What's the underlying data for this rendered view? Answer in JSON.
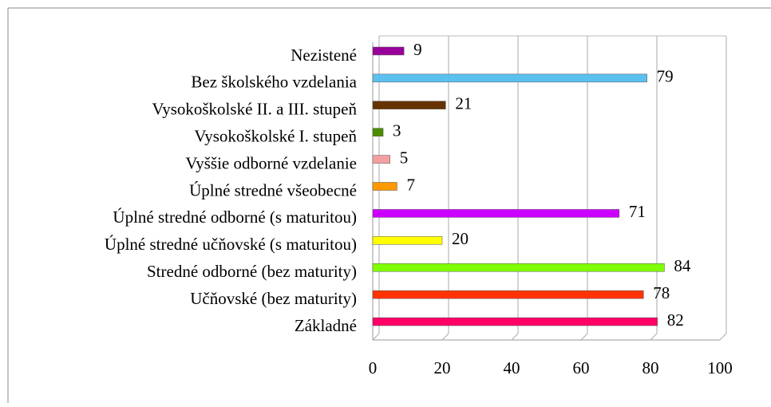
{
  "chart_data": {
    "type": "bar",
    "orientation": "horizontal",
    "categories": [
      "Nezistené",
      "Bez školského vzdelania",
      "Vysokoškolské II. a III. stupeň",
      "Vysokoškolské I. stupeň",
      "Vyššie odborné vzdelanie",
      "Úplné stredné všeobecné",
      "Úplné stredné odborné (s maturitou)",
      "Úplné stredné učňovské (s maturitou)",
      "Stredné odborné (bez maturity)",
      "Učňovské (bez maturity)",
      "Základné"
    ],
    "values": [
      9,
      79,
      21,
      3,
      5,
      7,
      71,
      20,
      84,
      78,
      82
    ],
    "colors": [
      "#990099",
      "#5bc0f0",
      "#663300",
      "#4d8c00",
      "#f4a0a0",
      "#ff9900",
      "#cc00ff",
      "#ffff00",
      "#80ff00",
      "#ff3300",
      "#ff0066"
    ],
    "xlim": [
      0,
      100
    ],
    "xticks": [
      0,
      20,
      40,
      60,
      80,
      100
    ],
    "grid": true
  }
}
